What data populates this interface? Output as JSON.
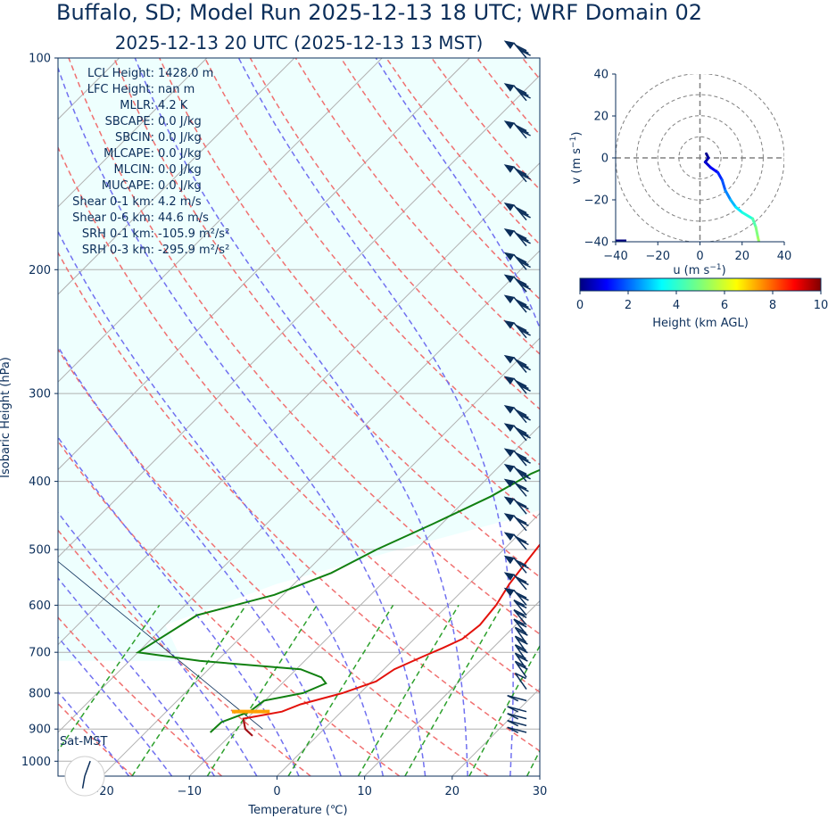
{
  "header": {
    "title": "Buffalo, SD; Model Run 2025-12-13 18 UTC; WRF Domain 02",
    "subtitle": "2025-12-13 20 UTC  (2025-12-13 13 MST)"
  },
  "chart_data": [
    {
      "type": "skew-t",
      "xlabel": "Temperature (℃)",
      "ylabel": "Isobaric Height (hPa)",
      "xlim": [
        -25,
        30
      ],
      "ylim": [
        1050,
        100
      ],
      "x_ticks": [
        "−20",
        "−10",
        "0",
        "10",
        "20",
        "30"
      ],
      "y_ticks": [
        "100",
        "200",
        "300",
        "400",
        "500",
        "600",
        "700",
        "800",
        "900",
        "1000"
      ],
      "grid": true,
      "shaded_region": "CAPE/CIN area, light cyan",
      "colors": {
        "temperature": "#e3120b",
        "dewpoint": "#118011",
        "dry_adiabats": "#f07070",
        "moist_adiabats": "#7070f0",
        "mixing_ratio": "#2ca02c",
        "parcel": "#0b2e5a",
        "barbs": "#0b2e5a",
        "cape_fill": "#eefffe"
      },
      "temperature_profile": [
        {
          "p": 920,
          "t": -7.4
        },
        {
          "p": 900,
          "t": -9.0
        },
        {
          "p": 870,
          "t": -10.4
        },
        {
          "p": 850,
          "t": -6.8
        },
        {
          "p": 830,
          "t": -5.5
        },
        {
          "p": 800,
          "t": -2.0
        },
        {
          "p": 770,
          "t": 0.5
        },
        {
          "p": 740,
          "t": 1.2
        },
        {
          "p": 710,
          "t": 3.0
        },
        {
          "p": 690,
          "t": 4.3
        },
        {
          "p": 670,
          "t": 5.5
        },
        {
          "p": 640,
          "t": 5.9
        },
        {
          "p": 600,
          "t": 5.5
        },
        {
          "p": 560,
          "t": 4.6
        },
        {
          "p": 520,
          "t": 4.0
        },
        {
          "p": 480,
          "t": 3.4
        },
        {
          "p": 440,
          "t": 3.0
        },
        {
          "p": 400,
          "t": 2.6
        },
        {
          "p": 360,
          "t": 1.6
        },
        {
          "p": 330,
          "t": -0.2
        },
        {
          "p": 300,
          "t": -1.5
        },
        {
          "p": 270,
          "t": -3.0
        },
        {
          "p": 240,
          "t": -4.5
        },
        {
          "p": 220,
          "t": -5.5
        },
        {
          "p": 210,
          "t": -5.5
        },
        {
          "p": 195,
          "t": -3.5
        },
        {
          "p": 180,
          "t": 1.5
        },
        {
          "p": 160,
          "t": 8.0
        },
        {
          "p": 140,
          "t": 15.0
        },
        {
          "p": 100,
          "t": 28.0
        }
      ],
      "dewpoint_profile": [
        {
          "p": 910,
          "t": -12.6
        },
        {
          "p": 880,
          "t": -12.5
        },
        {
          "p": 850,
          "t": -10.5
        },
        {
          "p": 820,
          "t": -10.1
        },
        {
          "p": 800,
          "t": -6.5
        },
        {
          "p": 775,
          "t": -5.0
        },
        {
          "p": 760,
          "t": -6.2
        },
        {
          "p": 740,
          "t": -9.5
        },
        {
          "p": 720,
          "t": -22.0
        },
        {
          "p": 700,
          "t": -30.0
        },
        {
          "p": 620,
          "t": -27.5
        },
        {
          "p": 580,
          "t": -21.0
        },
        {
          "p": 540,
          "t": -17.0
        },
        {
          "p": 500,
          "t": -14.5
        },
        {
          "p": 460,
          "t": -11.0
        },
        {
          "p": 420,
          "t": -7.5
        },
        {
          "p": 390,
          "t": -5.5
        },
        {
          "p": 360,
          "t": -1.8
        },
        {
          "p": 330,
          "t": -4.0
        },
        {
          "p": 300,
          "t": -7.0
        },
        {
          "p": 285,
          "t": -9.0
        },
        {
          "p": 260,
          "t": -9.5
        },
        {
          "p": 240,
          "t": -9.5
        },
        {
          "p": 210,
          "t": -8.5
        },
        {
          "p": 185,
          "t": -7.0
        },
        {
          "p": 170,
          "t": -8.0
        },
        {
          "p": 155,
          "t": -6.5
        },
        {
          "p": 135,
          "t": -3.5
        },
        {
          "p": 100,
          "t": 5.0
        }
      ],
      "parcel_profile": [
        {
          "p": 1000,
          "t": -20.0
        },
        {
          "p": 900,
          "t": -7.0
        }
      ],
      "surface_marker": {
        "p": 850,
        "t_start": -12.5,
        "t_end": -8.2,
        "color": "#ffa000"
      },
      "wind_barb_pressures": [
        100,
        115,
        130,
        150,
        170,
        185,
        200,
        215,
        230,
        250,
        280,
        300,
        330,
        350,
        380,
        400,
        420,
        445,
        470,
        500,
        540,
        570,
        600,
        620,
        640,
        660,
        680,
        700,
        720,
        740,
        760,
        790,
        820,
        850,
        870,
        890,
        910
      ],
      "stats": [
        {
          "label": "LCL Height:",
          "value": "1428.0 m"
        },
        {
          "label": "LFC Height:",
          "value": "nan m"
        },
        {
          "label": "MLLR:",
          "value": "4.2 K"
        },
        {
          "label": "SBCAPE:",
          "value": "0.0 J/kg"
        },
        {
          "label": "SBCIN:",
          "value": "0.0 J/kg"
        },
        {
          "label": "MLCAPE:",
          "value": "0.0 J/kg"
        },
        {
          "label": "MLCIN:",
          "value": "0.0 J/kg"
        },
        {
          "label": "MUCAPE:",
          "value": "0.0 J/kg"
        },
        {
          "label": "Shear 0-1 km:",
          "value": "4.2 m/s"
        },
        {
          "label": "Shear 0-6 km:",
          "value": "44.6 m/s"
        },
        {
          "label": "SRH 0-1 km:",
          "value": "-105.9 m²/s²"
        },
        {
          "label": "SRH 0-3 km:",
          "value": "-295.9 m²/s²"
        }
      ],
      "clock_label": "Sat-MST",
      "clock_hour_hand_deg": 20
    },
    {
      "type": "hodograph",
      "xlabel": "u (m s",
      "ylabel": "v (m s",
      "unit_exponent": "−1",
      "xlim": [
        -40,
        40
      ],
      "ylim": [
        -40,
        40
      ],
      "x_ticks": [
        "−40",
        "−20",
        "0",
        "20",
        "40"
      ],
      "y_ticks": [
        "40",
        "20",
        "0",
        "−20",
        "−40"
      ],
      "rings": [
        10,
        20,
        30,
        40
      ],
      "trace": [
        {
          "u": 3.0,
          "v": 2.0,
          "h": 0.0
        },
        {
          "u": 4.0,
          "v": 0.0,
          "h": 0.3
        },
        {
          "u": 2.5,
          "v": -2.0,
          "h": 0.6
        },
        {
          "u": 5.0,
          "v": -4.5,
          "h": 1.0
        },
        {
          "u": 8.5,
          "v": -7.0,
          "h": 1.4
        },
        {
          "u": 10.5,
          "v": -10.5,
          "h": 1.8
        },
        {
          "u": 12.0,
          "v": -15.5,
          "h": 2.3
        },
        {
          "u": 14.5,
          "v": -20.0,
          "h": 2.8
        },
        {
          "u": 17.0,
          "v": -23.5,
          "h": 3.3
        },
        {
          "u": 20.0,
          "v": -26.0,
          "h": 3.8
        },
        {
          "u": 25.0,
          "v": -29.0,
          "h": 4.3
        },
        {
          "u": 26.5,
          "v": -33.0,
          "h": 4.8
        },
        {
          "u": 27.5,
          "v": -38.0,
          "h": 5.2
        },
        {
          "u": 28.0,
          "v": -40.0,
          "h": 5.4
        }
      ]
    },
    {
      "type": "colorbar",
      "label": "Height (km AGL)",
      "range": [
        0,
        10
      ],
      "ticks": [
        "0",
        "2",
        "4",
        "6",
        "8",
        "10"
      ],
      "colormap": "jet"
    }
  ]
}
